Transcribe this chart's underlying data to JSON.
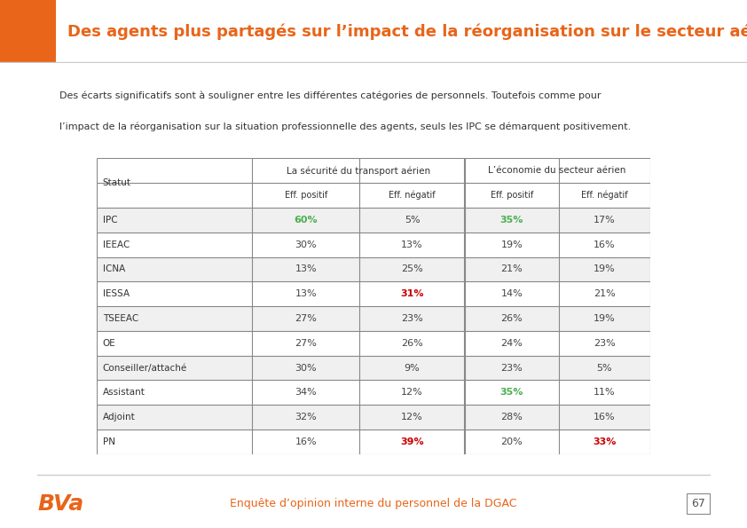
{
  "title": "Des agents plus partagés sur l’impact de la réorganisation sur le secteur aérien",
  "subtitle_line1": "Des écarts significatifs sont à souligner entre les différentes catégories de personnels. Toutefois comme pour",
  "subtitle_line2": "l’impact de la réorganisation sur la situation professionnelle des agents, seuls les IPC se démarquent positivement.",
  "header_col1": "Statut",
  "header_group1": "La sécurité du transport aérien",
  "header_group2": "L’économie du secteur aérien",
  "header_sub": [
    "Eff. positif",
    "Eff. négatif",
    "Eff. positif",
    "Eff. négatif"
  ],
  "rows": [
    {
      "statut": "IPC",
      "v": [
        "60%",
        "5%",
        "35%",
        "17%"
      ],
      "highlight": [
        true,
        false,
        true,
        false
      ]
    },
    {
      "statut": "IEEAC",
      "v": [
        "30%",
        "13%",
        "19%",
        "16%"
      ],
      "highlight": [
        false,
        false,
        false,
        false
      ]
    },
    {
      "statut": "ICNA",
      "v": [
        "13%",
        "25%",
        "21%",
        "19%"
      ],
      "highlight": [
        false,
        false,
        false,
        false
      ]
    },
    {
      "statut": "IESSA",
      "v": [
        "13%",
        "31%",
        "14%",
        "21%"
      ],
      "highlight": [
        false,
        true,
        false,
        false
      ]
    },
    {
      "statut": "TSEEAC",
      "v": [
        "27%",
        "23%",
        "26%",
        "19%"
      ],
      "highlight": [
        false,
        false,
        false,
        false
      ]
    },
    {
      "statut": "OE",
      "v": [
        "27%",
        "26%",
        "24%",
        "23%"
      ],
      "highlight": [
        false,
        false,
        false,
        false
      ]
    },
    {
      "statut": "Conseiller/attaché",
      "v": [
        "30%",
        "9%",
        "23%",
        "5%"
      ],
      "highlight": [
        false,
        false,
        false,
        false
      ]
    },
    {
      "statut": "Assistant",
      "v": [
        "34%",
        "12%",
        "35%",
        "11%"
      ],
      "highlight": [
        false,
        false,
        true,
        false
      ]
    },
    {
      "statut": "Adjoint",
      "v": [
        "32%",
        "12%",
        "28%",
        "16%"
      ],
      "highlight": [
        false,
        false,
        false,
        false
      ]
    },
    {
      "statut": "PN",
      "v": [
        "16%",
        "39%",
        "20%",
        "33%"
      ],
      "highlight": [
        false,
        true,
        false,
        true
      ]
    }
  ],
  "color_orange": "#E8651A",
  "color_green": "#4CAF50",
  "color_red": "#CC0000",
  "color_row_odd": "#F0F0F0",
  "color_row_even": "#FFFFFF",
  "color_table_border": "#888888",
  "color_title_text": "#E8651A",
  "footer_text": "Enquête d’opinion interne du personnel de la DGAC",
  "page_number": "67",
  "background_color": "#FFFFFF"
}
